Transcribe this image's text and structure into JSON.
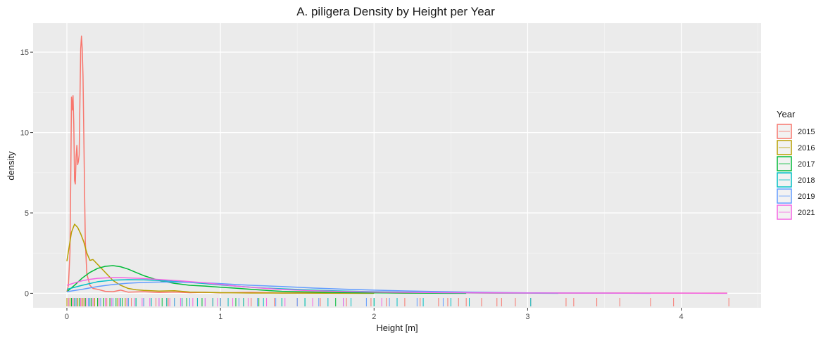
{
  "chart_data": {
    "type": "line",
    "title": "A. piligera Density by Height per Year",
    "xlabel": "Height [m]",
    "ylabel": "density",
    "xlim": [
      -0.22,
      4.52
    ],
    "ylim": [
      -0.9,
      16.8
    ],
    "x_ticks": [
      0,
      1,
      2,
      3,
      4
    ],
    "y_ticks": [
      0,
      5,
      10,
      15
    ],
    "grid": true,
    "legend": {
      "title": "Year",
      "position": "right"
    },
    "series": [
      {
        "name": "2015",
        "color": "#F8766D",
        "points": [
          [
            0.0,
            0.1
          ],
          [
            0.01,
            0.5
          ],
          [
            0.02,
            2.5
          ],
          [
            0.025,
            7.0
          ],
          [
            0.03,
            12.2
          ],
          [
            0.035,
            11.4
          ],
          [
            0.04,
            12.3
          ],
          [
            0.045,
            10.5
          ],
          [
            0.05,
            7.0
          ],
          [
            0.055,
            6.8
          ],
          [
            0.06,
            8.5
          ],
          [
            0.065,
            9.2
          ],
          [
            0.07,
            8.0
          ],
          [
            0.075,
            8.2
          ],
          [
            0.08,
            8.6
          ],
          [
            0.085,
            12.0
          ],
          [
            0.09,
            15.2
          ],
          [
            0.095,
            16.0
          ],
          [
            0.1,
            15.2
          ],
          [
            0.105,
            13.5
          ],
          [
            0.11,
            10.0
          ],
          [
            0.115,
            6.5
          ],
          [
            0.12,
            3.2
          ],
          [
            0.13,
            1.2
          ],
          [
            0.15,
            0.5
          ],
          [
            0.17,
            0.3
          ],
          [
            0.2,
            0.25
          ],
          [
            0.25,
            0.12
          ],
          [
            0.3,
            0.1
          ],
          [
            0.35,
            0.2
          ],
          [
            0.4,
            0.07
          ],
          [
            0.5,
            0.1
          ],
          [
            0.6,
            0.05
          ],
          [
            0.7,
            0.08
          ],
          [
            0.8,
            0.04
          ],
          [
            0.9,
            0.06
          ],
          [
            1.0,
            0.03
          ],
          [
            1.2,
            0.06
          ],
          [
            1.4,
            0.02
          ],
          [
            1.6,
            0.04
          ],
          [
            1.8,
            0.02
          ],
          [
            2.0,
            0.04
          ],
          [
            2.2,
            0.01
          ],
          [
            2.5,
            0.03
          ],
          [
            2.8,
            0.01
          ],
          [
            3.0,
            0.02
          ],
          [
            3.3,
            0.01
          ],
          [
            3.6,
            0.02
          ],
          [
            4.0,
            0.01
          ],
          [
            4.3,
            0.01
          ]
        ]
      },
      {
        "name": "2016",
        "color": "#B79F00",
        "points": [
          [
            0.0,
            2.0
          ],
          [
            0.01,
            2.6
          ],
          [
            0.02,
            3.2
          ],
          [
            0.03,
            3.8
          ],
          [
            0.05,
            4.3
          ],
          [
            0.07,
            4.1
          ],
          [
            0.09,
            3.7
          ],
          [
            0.11,
            3.2
          ],
          [
            0.13,
            2.5
          ],
          [
            0.15,
            2.05
          ],
          [
            0.17,
            2.1
          ],
          [
            0.2,
            1.8
          ],
          [
            0.25,
            1.3
          ],
          [
            0.3,
            0.8
          ],
          [
            0.35,
            0.5
          ],
          [
            0.4,
            0.3
          ],
          [
            0.45,
            0.22
          ],
          [
            0.5,
            0.18
          ],
          [
            0.6,
            0.14
          ],
          [
            0.7,
            0.16
          ],
          [
            0.8,
            0.08
          ],
          [
            0.9,
            0.06
          ],
          [
            1.0,
            0.04
          ],
          [
            1.2,
            0.02
          ],
          [
            1.5,
            0.01
          ],
          [
            2.0,
            0.0
          ]
        ]
      },
      {
        "name": "2017",
        "color": "#00BA38",
        "points": [
          [
            0.0,
            0.1
          ],
          [
            0.05,
            0.5
          ],
          [
            0.1,
            0.95
          ],
          [
            0.15,
            1.3
          ],
          [
            0.2,
            1.55
          ],
          [
            0.25,
            1.68
          ],
          [
            0.3,
            1.72
          ],
          [
            0.35,
            1.65
          ],
          [
            0.4,
            1.5
          ],
          [
            0.45,
            1.3
          ],
          [
            0.5,
            1.1
          ],
          [
            0.55,
            0.95
          ],
          [
            0.6,
            0.8
          ],
          [
            0.7,
            0.62
          ],
          [
            0.8,
            0.5
          ],
          [
            0.9,
            0.45
          ],
          [
            1.0,
            0.38
          ],
          [
            1.1,
            0.32
          ],
          [
            1.2,
            0.25
          ],
          [
            1.3,
            0.18
          ],
          [
            1.4,
            0.12
          ],
          [
            1.5,
            0.1
          ],
          [
            1.7,
            0.06
          ],
          [
            2.0,
            0.03
          ],
          [
            2.3,
            0.01
          ],
          [
            2.6,
            0.0
          ]
        ]
      },
      {
        "name": "2018",
        "color": "#00BFC4",
        "points": [
          [
            0.0,
            0.25
          ],
          [
            0.1,
            0.5
          ],
          [
            0.2,
            0.72
          ],
          [
            0.3,
            0.82
          ],
          [
            0.4,
            0.85
          ],
          [
            0.5,
            0.84
          ],
          [
            0.6,
            0.8
          ],
          [
            0.7,
            0.74
          ],
          [
            0.8,
            0.68
          ],
          [
            0.9,
            0.6
          ],
          [
            1.0,
            0.52
          ],
          [
            1.1,
            0.45
          ],
          [
            1.2,
            0.38
          ],
          [
            1.3,
            0.32
          ],
          [
            1.4,
            0.28
          ],
          [
            1.5,
            0.24
          ],
          [
            1.6,
            0.2
          ],
          [
            1.8,
            0.14
          ],
          [
            2.0,
            0.1
          ],
          [
            2.2,
            0.07
          ],
          [
            2.4,
            0.05
          ],
          [
            2.6,
            0.03
          ],
          [
            2.8,
            0.02
          ],
          [
            3.0,
            0.01
          ],
          [
            3.2,
            0.0
          ]
        ]
      },
      {
        "name": "2019",
        "color": "#619CFF",
        "points": [
          [
            0.0,
            0.1
          ],
          [
            0.1,
            0.25
          ],
          [
            0.2,
            0.42
          ],
          [
            0.3,
            0.55
          ],
          [
            0.4,
            0.63
          ],
          [
            0.5,
            0.68
          ],
          [
            0.6,
            0.7
          ],
          [
            0.7,
            0.7
          ],
          [
            0.8,
            0.68
          ],
          [
            0.9,
            0.65
          ],
          [
            1.0,
            0.6
          ],
          [
            1.1,
            0.55
          ],
          [
            1.2,
            0.5
          ],
          [
            1.3,
            0.46
          ],
          [
            1.4,
            0.42
          ],
          [
            1.5,
            0.38
          ],
          [
            1.6,
            0.33
          ],
          [
            1.8,
            0.26
          ],
          [
            2.0,
            0.2
          ],
          [
            2.2,
            0.15
          ],
          [
            2.4,
            0.11
          ],
          [
            2.6,
            0.08
          ],
          [
            2.8,
            0.05
          ],
          [
            3.0,
            0.03
          ],
          [
            3.2,
            0.02
          ],
          [
            3.5,
            0.01
          ],
          [
            3.8,
            0.0
          ]
        ]
      },
      {
        "name": "2021",
        "color": "#F564E3",
        "points": [
          [
            0.0,
            0.5
          ],
          [
            0.05,
            0.65
          ],
          [
            0.1,
            0.78
          ],
          [
            0.15,
            0.87
          ],
          [
            0.2,
            0.93
          ],
          [
            0.25,
            0.96
          ],
          [
            0.3,
            0.98
          ],
          [
            0.35,
            0.98
          ],
          [
            0.4,
            0.96
          ],
          [
            0.5,
            0.92
          ],
          [
            0.6,
            0.86
          ],
          [
            0.7,
            0.8
          ],
          [
            0.8,
            0.73
          ],
          [
            0.9,
            0.65
          ],
          [
            1.0,
            0.55
          ],
          [
            1.1,
            0.45
          ],
          [
            1.2,
            0.37
          ],
          [
            1.3,
            0.3
          ],
          [
            1.4,
            0.24
          ],
          [
            1.5,
            0.2
          ],
          [
            1.6,
            0.16
          ],
          [
            1.8,
            0.11
          ],
          [
            2.0,
            0.08
          ],
          [
            2.2,
            0.06
          ],
          [
            2.5,
            0.04
          ],
          [
            2.8,
            0.03
          ],
          [
            3.0,
            0.02
          ],
          [
            3.3,
            0.02
          ],
          [
            3.6,
            0.01
          ],
          [
            4.0,
            0.01
          ],
          [
            4.3,
            0.0
          ]
        ]
      }
    ],
    "rug": {
      "2015": [
        0.02,
        0.03,
        0.04,
        0.05,
        0.06,
        0.07,
        0.08,
        0.09,
        0.1,
        0.11,
        0.12,
        0.15,
        0.18,
        0.22,
        0.26,
        0.3,
        0.35,
        0.42,
        0.5,
        0.58,
        0.66,
        0.75,
        0.85,
        0.95,
        1.05,
        1.2,
        1.35,
        1.5,
        1.65,
        1.82,
        1.98,
        2.08,
        2.2,
        2.3,
        2.42,
        2.48,
        2.55,
        2.6,
        2.7,
        2.8,
        2.83,
        2.92,
        3.02,
        3.25,
        3.3,
        3.45,
        3.6,
        3.8,
        3.95,
        4.31
      ],
      "2016": [
        0.0,
        0.01,
        0.02,
        0.03,
        0.04,
        0.05,
        0.06,
        0.07,
        0.08,
        0.09,
        0.1,
        0.12,
        0.14,
        0.16,
        0.18,
        0.2,
        0.24,
        0.28,
        0.33,
        0.38,
        0.45,
        0.55,
        0.65,
        0.8,
        1.0,
        1.15
      ],
      "2017": [
        0.03,
        0.08,
        0.12,
        0.16,
        0.2,
        0.24,
        0.28,
        0.32,
        0.36,
        0.4,
        0.45,
        0.5,
        0.55,
        0.62,
        0.7,
        0.78,
        0.88,
        1.0,
        1.1,
        1.25,
        1.4,
        1.55,
        1.75,
        2.0
      ],
      "2018": [
        0.05,
        0.15,
        0.25,
        0.35,
        0.45,
        0.55,
        0.65,
        0.75,
        0.85,
        0.95,
        1.05,
        1.15,
        1.28,
        1.4,
        1.55,
        1.7,
        1.85,
        2.0,
        2.15,
        2.32,
        2.5,
        2.62,
        3.02
      ],
      "2019": [
        0.06,
        0.14,
        0.22,
        0.3,
        0.4,
        0.5,
        0.6,
        0.7,
        0.8,
        0.9,
        1.0,
        1.12,
        1.24,
        1.36,
        1.5,
        1.64,
        1.8,
        1.95,
        2.1,
        2.28,
        2.45
      ],
      "2021": [
        0.01,
        0.04,
        0.09,
        0.13,
        0.17,
        0.21,
        0.25,
        0.29,
        0.34,
        0.39,
        0.44,
        0.49,
        0.54,
        0.6,
        0.67,
        0.74,
        0.82,
        0.9,
        0.98,
        1.08,
        1.18,
        1.3,
        1.42,
        1.6,
        1.8,
        2.05
      ]
    }
  }
}
